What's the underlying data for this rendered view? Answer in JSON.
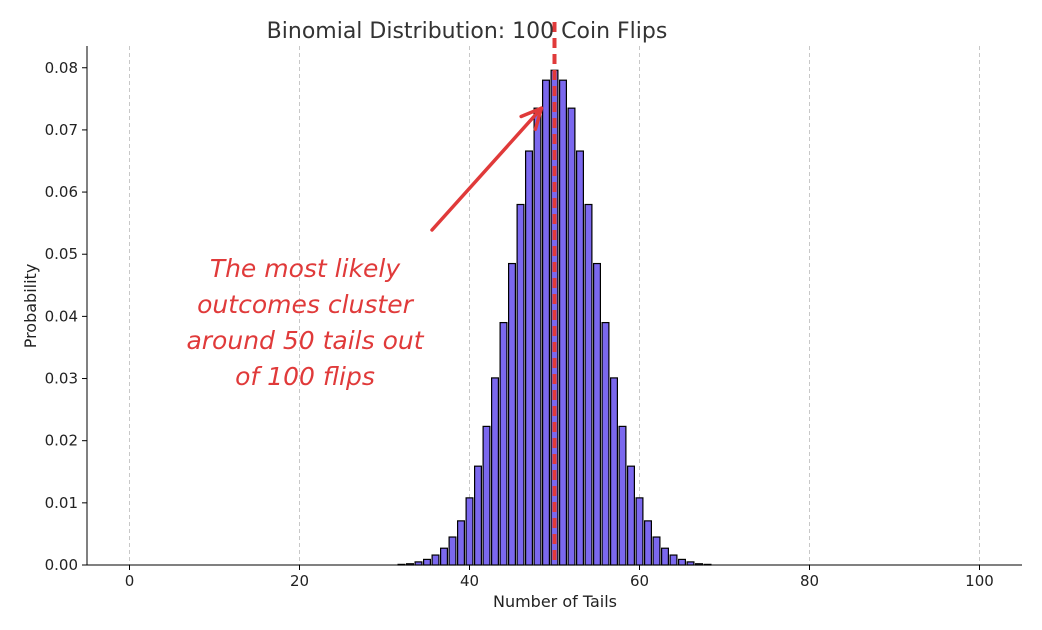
{
  "chart_data": {
    "type": "bar",
    "title": "Binomial Distribution: 100 Coin Flips",
    "xlabel": "Number of Tails",
    "ylabel": "Probability",
    "xlim": [
      -5,
      105
    ],
    "ylim": [
      0,
      0.0835
    ],
    "x_ticks": [
      0,
      20,
      40,
      60,
      80,
      100
    ],
    "x_tick_labels": [
      "0",
      "20",
      "40",
      "60",
      "80",
      "100"
    ],
    "y_ticks": [
      0,
      0.01,
      0.02,
      0.03,
      0.04,
      0.05,
      0.06,
      0.07,
      0.08
    ],
    "y_tick_labels": [
      "0.00",
      "0.01",
      "0.02",
      "0.03",
      "0.04",
      "0.05",
      "0.06",
      "0.07",
      "0.08"
    ],
    "grid": "vertical dashed at x ticks",
    "bar_color": "#7b68ee",
    "bar_edge_color": "#000000",
    "mean_line": {
      "x": 50,
      "color": "#e03a3a",
      "style": "dashed"
    },
    "annotation": {
      "lines": [
        "The most likely",
        "outcomes cluster",
        "around 50 tails out",
        "of 100 flips"
      ],
      "color": "#e03a3a",
      "arrow_to": {
        "x": 48,
        "y": 0.0735
      }
    },
    "x": [
      32,
      33,
      34,
      35,
      36,
      37,
      38,
      39,
      40,
      41,
      42,
      43,
      44,
      45,
      46,
      47,
      48,
      49,
      50,
      51,
      52,
      53,
      54,
      55,
      56,
      57,
      58,
      59,
      60,
      61,
      62,
      63,
      64,
      65,
      66,
      67,
      68
    ],
    "values": [
      0.0001,
      0.0002,
      0.0005,
      0.0009,
      0.0016,
      0.0027,
      0.0045,
      0.0071,
      0.0108,
      0.0159,
      0.0223,
      0.0301,
      0.039,
      0.0485,
      0.058,
      0.0666,
      0.0735,
      0.078,
      0.0796,
      0.078,
      0.0735,
      0.0666,
      0.058,
      0.0485,
      0.039,
      0.0301,
      0.0223,
      0.0159,
      0.0108,
      0.0071,
      0.0045,
      0.0027,
      0.0016,
      0.0009,
      0.0005,
      0.0002,
      0.0001
    ]
  }
}
